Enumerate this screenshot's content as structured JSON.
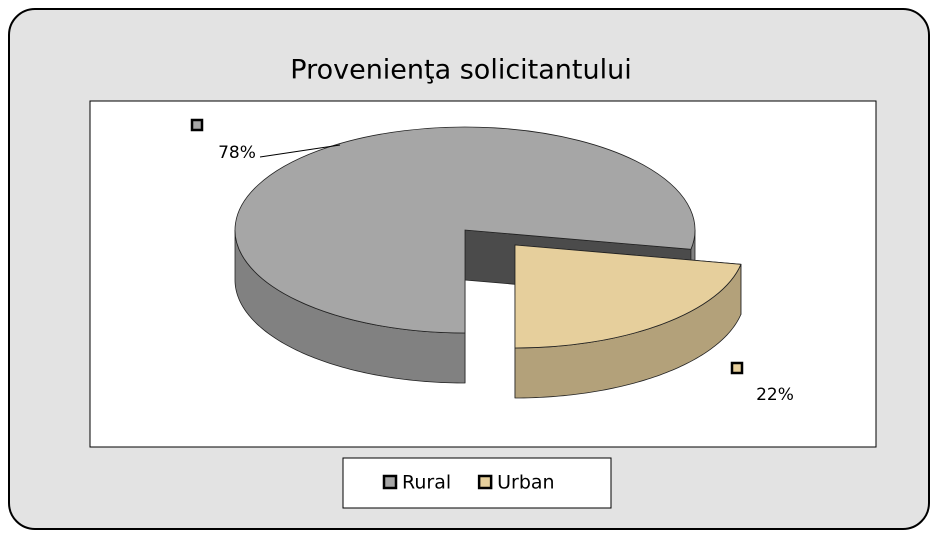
{
  "chart_data": {
    "type": "pie",
    "title": "Provenienţa solicitantului",
    "categories": [
      "Rural",
      "Urban"
    ],
    "values": [
      78,
      22
    ],
    "value_labels": [
      "78%",
      "22%"
    ],
    "colors": [
      "#a6a6a6",
      "#e6cf9c"
    ],
    "legend": "bottom"
  }
}
